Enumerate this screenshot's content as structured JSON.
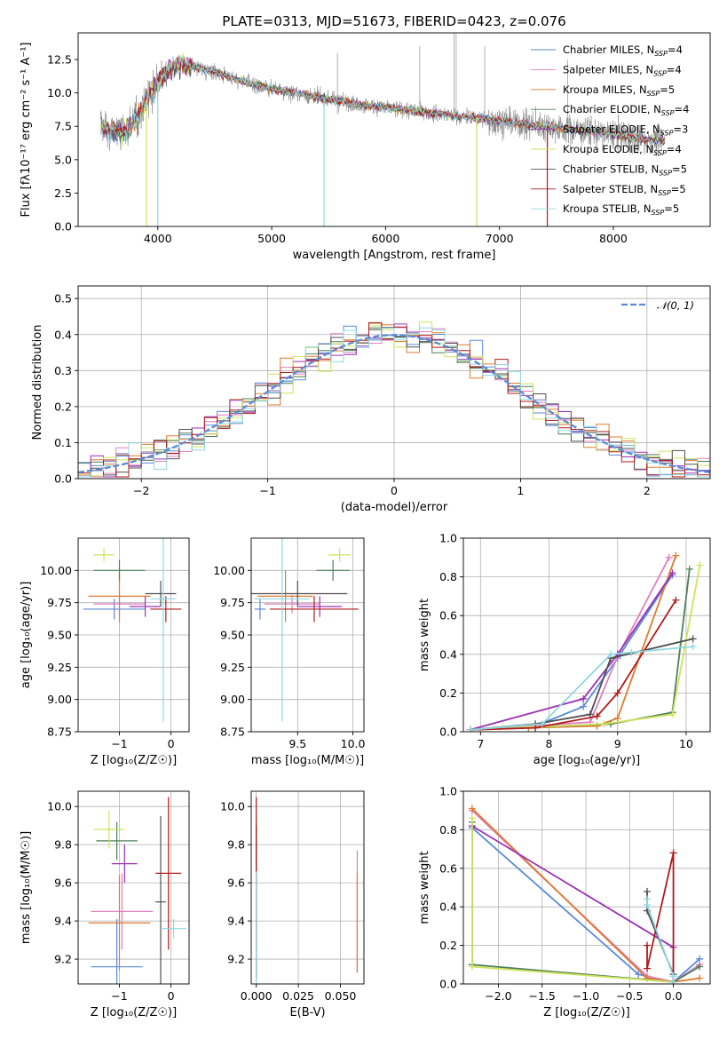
{
  "colors": {
    "chabrier_miles": "#5b8ad6",
    "salpeter_miles": "#e07fc0",
    "kroupa_miles": "#e07a2c",
    "chabrier_elodie": "#4f7f5a",
    "salpeter_elodie": "#9b30b5",
    "kroupa_elodie": "#cfe35a",
    "chabrier_stelib": "#505050",
    "salpeter_stelib": "#b01a1a",
    "kroupa_stelib": "#8fd8e0",
    "data_spectrum": "#808080",
    "normal_curve": "#5b8ad6"
  },
  "chart_data": [
    {
      "id": "spectrum",
      "type": "line",
      "title": "PLATE=0313, MJD=51673, FIBERID=0423, z=0.076",
      "xlabel": "wavelength [Angstrom, rest frame]",
      "ylabel": "Flux [fλ10⁻¹⁷ erg cm⁻² s⁻¹ A⁻¹]",
      "xlim": [
        3300,
        8850
      ],
      "ylim": [
        0,
        14.5
      ],
      "xticks": [
        4000,
        5000,
        6000,
        7000,
        8000
      ],
      "yticks": [
        0.0,
        2.5,
        5.0,
        7.5,
        10.0,
        12.5
      ],
      "legend_position": "top-right",
      "legend": [
        {
          "label": "Chabrier MILES, N",
          "sub": "SSP",
          "suffix": "=4",
          "color": "#5b8ad6"
        },
        {
          "label": "Salpeter MILES, N",
          "sub": "SSP",
          "suffix": "=4",
          "color": "#e07fc0"
        },
        {
          "label": "Kroupa MILES, N",
          "sub": "SSP",
          "suffix": "=5",
          "color": "#e07a2c"
        },
        {
          "label": "Chabrier ELODIE, N",
          "sub": "SSP",
          "suffix": "=4",
          "color": "#4f7f5a"
        },
        {
          "label": "Salpeter ELODIE, N",
          "sub": "SSP",
          "suffix": "=3",
          "color": "#9b30b5"
        },
        {
          "label": "Kroupa ELODIE, N",
          "sub": "SSP",
          "suffix": "=4",
          "color": "#cfe35a"
        },
        {
          "label": "Chabrier STELIB, N",
          "sub": "SSP",
          "suffix": "=5",
          "color": "#505050"
        },
        {
          "label": "Salpeter STELIB, N",
          "sub": "SSP",
          "suffix": "=5",
          "color": "#b01a1a"
        },
        {
          "label": "Kroupa STELIB, N",
          "sub": "SSP",
          "suffix": "=5",
          "color": "#8fd8e0"
        }
      ],
      "continuum": {
        "x": [
          3500,
          3600,
          3700,
          3800,
          3900,
          4000,
          4100,
          4200,
          4300,
          4400,
          4500,
          4600,
          4700,
          4800,
          4900,
          5000,
          5200,
          5400,
          5600,
          5800,
          6000,
          6200,
          6400,
          6600,
          6800,
          7000,
          7200,
          7400,
          7600,
          7800,
          8000,
          8200,
          8400
        ],
        "y": [
          7.6,
          7.2,
          7.0,
          8.0,
          9.5,
          10.8,
          11.8,
          12.2,
          12.0,
          11.8,
          11.6,
          11.3,
          11.0,
          10.7,
          10.5,
          10.3,
          10.0,
          9.7,
          9.4,
          9.1,
          8.9,
          8.7,
          8.5,
          8.3,
          8.1,
          7.9,
          7.7,
          7.5,
          7.3,
          7.1,
          6.9,
          6.6,
          6.4
        ]
      }
    },
    {
      "id": "residuals",
      "type": "line",
      "xlabel": "(data-model)/error",
      "ylabel": "Normed distribution",
      "xlim": [
        -2.5,
        2.5
      ],
      "ylim": [
        0,
        0.535
      ],
      "xticks": [
        -2,
        -1,
        0,
        1,
        2
      ],
      "yticks": [
        0.0,
        0.1,
        0.2,
        0.3,
        0.4,
        0.5
      ],
      "legend": "𝒩(0, 1)",
      "legend_position": "top-right",
      "bin_width": 0.1
    },
    {
      "id": "age_vs_z",
      "type": "scatter",
      "xlabel": "Z [log₁₀(Z/Z☉)]",
      "ylabel": "age  [log₁₀(age/yr)]",
      "xlim": [
        -1.8,
        0.35
      ],
      "ylim": [
        8.75,
        10.25
      ],
      "xticks": [
        -1,
        0
      ],
      "yticks": [
        8.75,
        9.0,
        9.25,
        9.5,
        9.75,
        10.0
      ],
      "points": [
        {
          "m": "chabrier_miles",
          "x": -1.1,
          "xerr": 0.6,
          "y": 9.7,
          "yerr": 0.08
        },
        {
          "m": "salpeter_miles",
          "x": -1.0,
          "xerr": 0.5,
          "y": 9.74,
          "yerr": 0.07
        },
        {
          "m": "kroupa_miles",
          "x": -1.0,
          "xerr": 0.6,
          "y": 9.8,
          "yerr": 0.2
        },
        {
          "m": "chabrier_elodie",
          "x": -1.0,
          "xerr": 0.5,
          "y": 10.0,
          "yerr": 0.08
        },
        {
          "m": "salpeter_elodie",
          "x": -0.5,
          "xerr": 0.3,
          "y": 9.72,
          "yerr": 0.08
        },
        {
          "m": "kroupa_elodie",
          "x": -1.3,
          "xerr": 0.2,
          "y": 10.12,
          "yerr": 0.05
        },
        {
          "m": "chabrier_stelib",
          "x": -0.2,
          "xerr": 0.3,
          "y": 9.82,
          "yerr": 0.1
        },
        {
          "m": "salpeter_stelib",
          "x": -0.1,
          "xerr": 0.3,
          "y": 9.7,
          "yerr": 0.1
        },
        {
          "m": "kroupa_stelib",
          "x": -0.15,
          "xerr": 0.25,
          "y": 9.78,
          "yerr": 0.95
        }
      ]
    },
    {
      "id": "age_vs_mass",
      "type": "scatter",
      "xlabel": "mass [log₁₀(M/M☉)]",
      "ylabel": "",
      "xlim": [
        9.08,
        10.1
      ],
      "ylim": [
        8.75,
        10.25
      ],
      "xticks": [
        9.5,
        10.0
      ],
      "yticks": [
        8.75,
        9.0,
        9.25,
        9.5,
        9.75,
        10.0
      ],
      "points": [
        {
          "m": "chabrier_miles",
          "x": 9.16,
          "xerr": 0.05,
          "y": 9.7,
          "yerr": 0.08
        },
        {
          "m": "salpeter_miles",
          "x": 9.45,
          "xerr": 0.25,
          "y": 9.74,
          "yerr": 0.07
        },
        {
          "m": "kroupa_miles",
          "x": 9.39,
          "xerr": 0.25,
          "y": 9.8,
          "yerr": 0.2
        },
        {
          "m": "chabrier_elodie",
          "x": 9.82,
          "xerr": 0.15,
          "y": 10.0,
          "yerr": 0.08
        },
        {
          "m": "salpeter_elodie",
          "x": 9.7,
          "xerr": 0.2,
          "y": 9.72,
          "yerr": 0.08
        },
        {
          "m": "kroupa_elodie",
          "x": 9.88,
          "xerr": 0.1,
          "y": 10.12,
          "yerr": 0.05
        },
        {
          "m": "chabrier_stelib",
          "x": 9.5,
          "xerr": 0.45,
          "y": 9.82,
          "yerr": 0.1
        },
        {
          "m": "salpeter_stelib",
          "x": 9.65,
          "xerr": 0.4,
          "y": 9.7,
          "yerr": 0.1
        },
        {
          "m": "kroupa_stelib",
          "x": 9.36,
          "xerr": 0.25,
          "y": 9.78,
          "yerr": 0.95
        }
      ]
    },
    {
      "id": "mass_weight_vs_age",
      "type": "line",
      "xlabel": "age  [log₁₀(age/yr)]",
      "ylabel": "mass weight",
      "xlim": [
        6.75,
        10.35
      ],
      "ylim": [
        0,
        1.0
      ],
      "xticks": [
        7,
        8,
        9,
        10
      ],
      "yticks": [
        0.0,
        0.2,
        0.4,
        0.6,
        0.8,
        1.0
      ],
      "series": [
        {
          "m": "chabrier_miles",
          "x": [
            6.85,
            7.8,
            8.5,
            9.0,
            9.8
          ],
          "y": [
            0.01,
            0.03,
            0.13,
            0.38,
            0.81
          ]
        },
        {
          "m": "salpeter_miles",
          "x": [
            6.85,
            7.8,
            8.6,
            9.0,
            9.75
          ],
          "y": [
            0.01,
            0.03,
            0.05,
            0.39,
            0.9
          ]
        },
        {
          "m": "kroupa_miles",
          "x": [
            6.85,
            7.7,
            8.7,
            9.0,
            9.85
          ],
          "y": [
            0.01,
            0.02,
            0.03,
            0.07,
            0.91
          ]
        },
        {
          "m": "chabrier_elodie",
          "x": [
            6.85,
            8.9,
            9.8,
            10.05
          ],
          "y": [
            0.01,
            0.04,
            0.1,
            0.84
          ]
        },
        {
          "m": "salpeter_elodie",
          "x": [
            6.85,
            8.5,
            9.0,
            9.8
          ],
          "y": [
            0.01,
            0.17,
            0.4,
            0.82
          ]
        },
        {
          "m": "kroupa_elodie",
          "x": [
            6.85,
            8.8,
            9.8,
            10.2
          ],
          "y": [
            0.01,
            0.04,
            0.09,
            0.86
          ]
        },
        {
          "m": "chabrier_stelib",
          "x": [
            6.85,
            7.8,
            8.6,
            8.9,
            10.1
          ],
          "y": [
            0.01,
            0.04,
            0.09,
            0.38,
            0.48
          ]
        },
        {
          "m": "salpeter_stelib",
          "x": [
            6.85,
            7.8,
            8.7,
            9.0,
            9.85
          ],
          "y": [
            0.01,
            0.02,
            0.08,
            0.2,
            0.68
          ]
        },
        {
          "m": "kroupa_stelib",
          "x": [
            6.85,
            7.9,
            8.9,
            9.2,
            10.1
          ],
          "y": [
            0.01,
            0.04,
            0.4,
            0.41,
            0.44
          ]
        }
      ]
    },
    {
      "id": "mass_vs_z",
      "type": "scatter",
      "xlabel": "Z [log₁₀(Z/Z☉)]",
      "ylabel": "mass [log₁₀(M/M☉)]",
      "xlim": [
        -1.8,
        0.35
      ],
      "ylim": [
        9.07,
        10.08
      ],
      "xticks": [
        -1,
        0
      ],
      "yticks": [
        9.2,
        9.4,
        9.6,
        9.8,
        10.0
      ],
      "points": [
        {
          "m": "chabrier_miles",
          "x": -1.05,
          "xerr": 0.5,
          "y": 9.16,
          "yerr": 0.25
        },
        {
          "m": "salpeter_miles",
          "x": -0.95,
          "xerr": 0.6,
          "y": 9.45,
          "yerr": 0.2
        },
        {
          "m": "kroupa_miles",
          "x": -1.0,
          "xerr": 0.6,
          "y": 9.39,
          "yerr": 0.25
        },
        {
          "m": "chabrier_elodie",
          "x": -1.05,
          "xerr": 0.4,
          "y": 9.82,
          "yerr": 0.1
        },
        {
          "m": "salpeter_elodie",
          "x": -0.9,
          "xerr": 0.25,
          "y": 9.7,
          "yerr": 0.1
        },
        {
          "m": "kroupa_elodie",
          "x": -1.2,
          "xerr": 0.3,
          "y": 9.88,
          "yerr": 0.1
        },
        {
          "m": "chabrier_stelib",
          "x": -0.2,
          "xerr": 0.1,
          "y": 9.5,
          "yerr": 0.45
        },
        {
          "m": "salpeter_stelib",
          "x": -0.05,
          "xerr": 0.25,
          "y": 9.65,
          "yerr": 0.4
        },
        {
          "m": "kroupa_stelib",
          "x": 0.05,
          "xerr": 0.25,
          "y": 9.36,
          "yerr": 0.05
        }
      ]
    },
    {
      "id": "mass_vs_ebv",
      "type": "scatter",
      "xlabel": "E(B-V)",
      "ylabel": "",
      "xlim": [
        -0.003,
        0.064
      ],
      "ylim": [
        9.07,
        10.08
      ],
      "xticks": [
        0.0,
        0.025,
        0.05
      ],
      "xtick_labels": [
        "0.000",
        "0.025",
        "0.050"
      ],
      "yticks": [
        9.2,
        9.4,
        9.6,
        9.8,
        10.0
      ],
      "points": [
        {
          "m": "chabrier_miles",
          "x": 0.0,
          "y": 9.16,
          "yerr": 0.06
        },
        {
          "m": "salpeter_miles",
          "x": 0.06,
          "y": 9.45,
          "yerr": 0.32
        },
        {
          "m": "kroupa_miles",
          "x": 0.06,
          "y": 9.39,
          "yerr": 0.26
        },
        {
          "m": "chabrier_elodie",
          "x": 0.0,
          "y": 9.82,
          "yerr": 0.08
        },
        {
          "m": "salpeter_elodie",
          "x": 0.0,
          "y": 9.7,
          "yerr": 0.05
        },
        {
          "m": "kroupa_elodie",
          "x": 0.0,
          "y": 9.88,
          "yerr": 0.06
        },
        {
          "m": "chabrier_stelib",
          "x": 0.0,
          "y": 9.5,
          "yerr": 0.4
        },
        {
          "m": "salpeter_stelib",
          "x": 0.0,
          "y": 9.65,
          "yerr": 0.4
        },
        {
          "m": "kroupa_stelib",
          "x": 0.0,
          "y": 9.36,
          "yerr": 0.3
        }
      ]
    },
    {
      "id": "mass_weight_vs_z",
      "type": "line",
      "xlabel": "Z [log₁₀(Z/Z☉)]",
      "ylabel": "mass weight",
      "xlim": [
        -2.4,
        0.42
      ],
      "ylim": [
        0,
        1.0
      ],
      "xticks": [
        -2.0,
        -1.5,
        -1.0,
        -0.5,
        0.0
      ],
      "yticks": [
        0.0,
        0.2,
        0.4,
        0.6,
        0.8,
        1.0
      ],
      "series": [
        {
          "m": "chabrier_miles",
          "x": [
            -2.3,
            -0.4,
            0.0,
            0.3
          ],
          "y": [
            0.81,
            0.05,
            0.01,
            0.13
          ]
        },
        {
          "m": "salpeter_miles",
          "x": [
            -2.3,
            -0.3,
            0.0,
            0.3
          ],
          "y": [
            0.9,
            0.04,
            0.01,
            0.1
          ]
        },
        {
          "m": "kroupa_miles",
          "x": [
            -2.3,
            -0.3,
            0.0,
            0.3
          ],
          "y": [
            0.91,
            0.03,
            0.01,
            0.03
          ]
        },
        {
          "m": "chabrier_elodie",
          "x": [
            -2.3,
            -2.3,
            0.0,
            0.3
          ],
          "y": [
            0.84,
            0.1,
            0.01,
            0.09
          ]
        },
        {
          "m": "salpeter_elodie",
          "x": [
            -2.3,
            0.0,
            0.0
          ],
          "y": [
            0.82,
            0.19,
            0.01
          ]
        },
        {
          "m": "kroupa_elodie",
          "x": [
            -2.3,
            -2.3,
            0.0
          ],
          "y": [
            0.86,
            0.09,
            0.01
          ]
        },
        {
          "m": "chabrier_stelib",
          "x": [
            -0.3,
            -0.3,
            0.0,
            0.0
          ],
          "y": [
            0.48,
            0.38,
            0.05,
            0.01
          ]
        },
        {
          "m": "salpeter_stelib",
          "x": [
            -0.3,
            -0.3,
            0.0,
            0.0
          ],
          "y": [
            0.2,
            0.08,
            0.68,
            0.01
          ]
        },
        {
          "m": "kroupa_stelib",
          "x": [
            -0.3,
            -0.3,
            0.0,
            0.0
          ],
          "y": [
            0.44,
            0.41,
            0.04,
            0.01
          ]
        }
      ]
    }
  ]
}
